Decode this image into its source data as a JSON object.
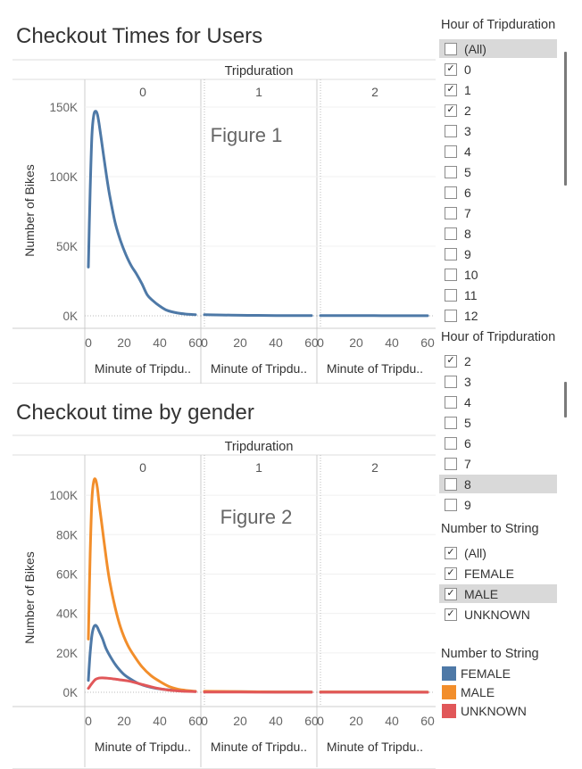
{
  "dashboard": {
    "chart1_title": "Checkout Times for Users",
    "chart2_title": "Checkout time by gender",
    "panel_header": "Tripduration",
    "panel_labels": [
      "0",
      "1",
      "2"
    ],
    "x_axis_label": "Minute of Tripdu..",
    "x_axis_label_alt": "Minute of Tripdu..",
    "y_axis_label": "Number of Bikes",
    "x_ticks": [
      "0",
      "20",
      "40",
      "60"
    ],
    "fig1_label": "Figure 1",
    "fig2_label": "Figure 2"
  },
  "filters": {
    "hour_filter_1": {
      "title": "Hour of Tripduration",
      "items": [
        {
          "label": "(All)",
          "checked": false,
          "highlighted": true
        },
        {
          "label": "0",
          "checked": true
        },
        {
          "label": "1",
          "checked": true
        },
        {
          "label": "2",
          "checked": true
        },
        {
          "label": "3",
          "checked": false
        },
        {
          "label": "4",
          "checked": false
        },
        {
          "label": "5",
          "checked": false
        },
        {
          "label": "6",
          "checked": false
        },
        {
          "label": "7",
          "checked": false
        },
        {
          "label": "8",
          "checked": false
        },
        {
          "label": "9",
          "checked": false
        },
        {
          "label": "10",
          "checked": false
        },
        {
          "label": "11",
          "checked": false
        },
        {
          "label": "12",
          "checked": false
        }
      ]
    },
    "hour_filter_2": {
      "title": "Hour of Tripduration",
      "items": [
        {
          "label": "2",
          "checked": true
        },
        {
          "label": "3",
          "checked": false
        },
        {
          "label": "4",
          "checked": false
        },
        {
          "label": "5",
          "checked": false
        },
        {
          "label": "6",
          "checked": false
        },
        {
          "label": "7",
          "checked": false
        },
        {
          "label": "8",
          "checked": false,
          "highlighted": true
        },
        {
          "label": "9",
          "checked": false
        }
      ]
    },
    "gender_filter": {
      "title": "Number to  String",
      "items": [
        {
          "label": "(All)",
          "checked": true
        },
        {
          "label": "FEMALE",
          "checked": true
        },
        {
          "label": "MALE",
          "checked": true,
          "highlighted": true
        },
        {
          "label": "UNKNOWN",
          "checked": true
        }
      ]
    },
    "gender_legend": {
      "title": "Number to  String",
      "items": [
        {
          "label": "FEMALE",
          "color": "#4e79a7"
        },
        {
          "label": "MALE",
          "color": "#f28e2b"
        },
        {
          "label": "UNKNOWN",
          "color": "#e15759"
        }
      ]
    }
  },
  "chart_data": [
    {
      "type": "line",
      "title": "Checkout Times for Users",
      "xlabel": "Minute of Tripduration",
      "ylabel": "Number of Bikes",
      "ylim": [
        0,
        150000
      ],
      "xlim": [
        0,
        60
      ],
      "y_ticks": [
        "0K",
        "50K",
        "100K",
        "150K"
      ],
      "y_tick_values": [
        0,
        50000,
        100000,
        150000
      ],
      "annotation": "Figure 1",
      "panels": [
        {
          "label": "0",
          "series": [
            {
              "color": "#4e79a7",
              "x": [
                0,
                1,
                2,
                3,
                4,
                5,
                6,
                8,
                10,
                12,
                15,
                18,
                21,
                24,
                27,
                30,
                33,
                36,
                40,
                44,
                50,
                55,
                60
              ],
              "y": [
                35000,
                90000,
                130000,
                144000,
                147000,
                145000,
                138000,
                120000,
                102000,
                86000,
                67000,
                54000,
                44000,
                36000,
                30000,
                23000,
                15000,
                11000,
                7000,
                4000,
                2000,
                1200,
                800
              ]
            }
          ]
        },
        {
          "label": "1",
          "series": [
            {
              "color": "#4e79a7",
              "x": [
                0,
                10,
                20,
                30,
                40,
                50,
                60
              ],
              "y": [
                800,
                600,
                400,
                300,
                200,
                150,
                100
              ]
            }
          ]
        },
        {
          "label": "2",
          "series": [
            {
              "color": "#4e79a7",
              "x": [
                0,
                10,
                20,
                30,
                40,
                50,
                60
              ],
              "y": [
                200,
                150,
                120,
                100,
                80,
                70,
                60
              ]
            }
          ]
        }
      ]
    },
    {
      "type": "line",
      "title": "Checkout time by gender",
      "xlabel": "Minute of Tripduration",
      "ylabel": "Number of Bikes",
      "ylim": [
        0,
        110000
      ],
      "xlim": [
        0,
        60
      ],
      "y_ticks": [
        "0K",
        "20K",
        "40K",
        "60K",
        "80K",
        "100K"
      ],
      "y_tick_values": [
        0,
        20000,
        40000,
        60000,
        80000,
        100000
      ],
      "annotation": "Figure 2",
      "panels": [
        {
          "label": "0",
          "series": [
            {
              "name": "FEMALE",
              "color": "#4e79a7",
              "x": [
                0,
                1,
                2,
                3,
                4,
                5,
                6,
                8,
                10,
                13,
                16,
                20,
                24,
                28,
                33,
                38,
                45,
                52,
                60
              ],
              "y": [
                6000,
                20000,
                29000,
                33000,
                34000,
                33000,
                31000,
                27000,
                22000,
                17000,
                13000,
                9000,
                6500,
                4500,
                3000,
                2000,
                1200,
                700,
                400
              ]
            },
            {
              "name": "MALE",
              "color": "#f28e2b",
              "x": [
                0,
                1,
                2,
                3,
                4,
                5,
                6,
                8,
                10,
                12,
                15,
                18,
                22,
                26,
                30,
                35,
                40,
                45,
                50,
                55,
                60
              ],
              "y": [
                27000,
                70000,
                98000,
                107000,
                108000,
                104000,
                96000,
                82000,
                68000,
                56000,
                43000,
                33000,
                24000,
                18000,
                13000,
                8500,
                5500,
                3000,
                1600,
                900,
                500
              ]
            },
            {
              "name": "UNKNOWN",
              "color": "#e15759",
              "x": [
                0,
                2,
                4,
                6,
                8,
                10,
                14,
                18,
                22,
                26,
                30,
                35,
                40,
                46,
                52,
                60
              ],
              "y": [
                2000,
                4500,
                6500,
                7200,
                7300,
                7200,
                6800,
                6300,
                5800,
                5000,
                4000,
                2800,
                1800,
                1000,
                600,
                300
              ]
            }
          ]
        },
        {
          "label": "1",
          "series": [
            {
              "name": "FEMALE",
              "color": "#4e79a7",
              "x": [
                0,
                20,
                40,
                60
              ],
              "y": [
                400,
                250,
                150,
                100
              ]
            },
            {
              "name": "MALE",
              "color": "#f28e2b",
              "x": [
                0,
                20,
                40,
                60
              ],
              "y": [
                500,
                300,
                200,
                150
              ]
            },
            {
              "name": "UNKNOWN",
              "color": "#e15759",
              "x": [
                0,
                20,
                40,
                60
              ],
              "y": [
                100,
                80,
                60,
                50
              ]
            }
          ]
        },
        {
          "label": "2",
          "series": [
            {
              "name": "FEMALE",
              "color": "#4e79a7",
              "x": [
                0,
                20,
                40,
                60
              ],
              "y": [
                150,
                100,
                80,
                60
              ]
            },
            {
              "name": "MALE",
              "color": "#f28e2b",
              "x": [
                0,
                20,
                40,
                60
              ],
              "y": [
                200,
                150,
                100,
                80
              ]
            },
            {
              "name": "UNKNOWN",
              "color": "#e15759",
              "x": [
                0,
                20,
                40,
                60
              ],
              "y": [
                40,
                30,
                25,
                20
              ]
            }
          ]
        }
      ]
    }
  ]
}
